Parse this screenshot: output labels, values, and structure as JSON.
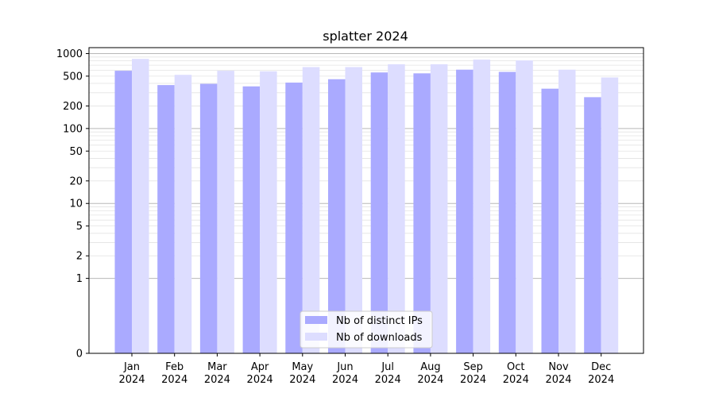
{
  "chart_data": {
    "type": "bar",
    "title": "splatter 2024",
    "xlabel": "",
    "ylabel": "",
    "y_scale": "symlog",
    "ylim": [
      0,
      1200
    ],
    "y_ticks": [
      0,
      1,
      2,
      5,
      10,
      20,
      50,
      100,
      200,
      500,
      1000
    ],
    "categories": [
      {
        "month": "Jan",
        "year": "2024"
      },
      {
        "month": "Feb",
        "year": "2024"
      },
      {
        "month": "Mar",
        "year": "2024"
      },
      {
        "month": "Apr",
        "year": "2024"
      },
      {
        "month": "May",
        "year": "2024"
      },
      {
        "month": "Jun",
        "year": "2024"
      },
      {
        "month": "Jul",
        "year": "2024"
      },
      {
        "month": "Aug",
        "year": "2024"
      },
      {
        "month": "Sep",
        "year": "2024"
      },
      {
        "month": "Oct",
        "year": "2024"
      },
      {
        "month": "Nov",
        "year": "2024"
      },
      {
        "month": "Dec",
        "year": "2024"
      }
    ],
    "series": [
      {
        "name": "Nb of distinct IPs",
        "color": "#aaaaff",
        "values": [
          590,
          380,
          395,
          365,
          410,
          455,
          560,
          545,
          610,
          570,
          340,
          262
        ]
      },
      {
        "name": "Nb of downloads",
        "color": "#ddddff",
        "values": [
          850,
          520,
          590,
          580,
          660,
          660,
          720,
          720,
          830,
          810,
          610,
          480
        ]
      }
    ],
    "grid": true,
    "legend_position": "bottom-center"
  }
}
